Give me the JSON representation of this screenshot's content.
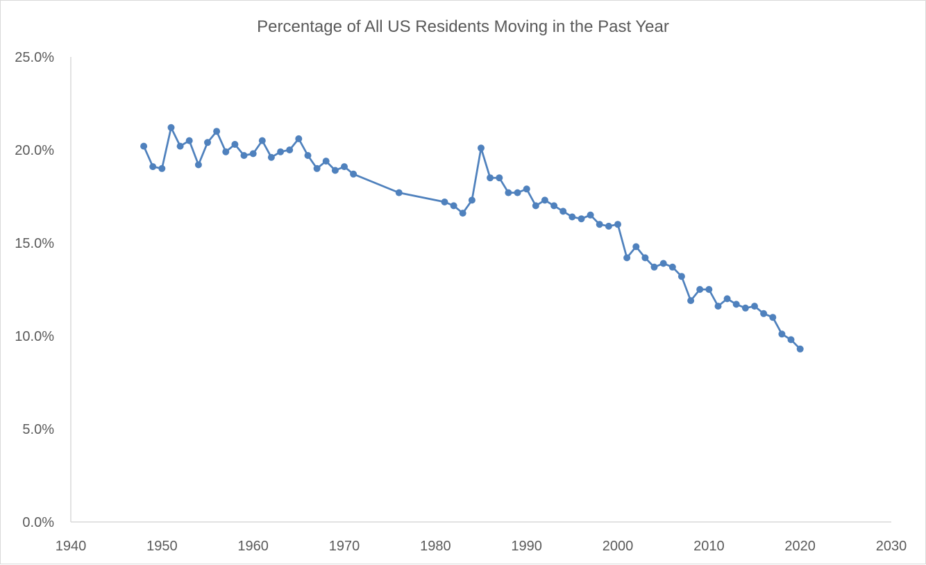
{
  "chart_data": {
    "type": "line",
    "title": "Percentage of All US Residents Moving in the Past Year",
    "xlabel": "",
    "ylabel": "",
    "xlim": [
      1940,
      2030
    ],
    "ylim": [
      0,
      25
    ],
    "x_ticks": [
      1940,
      1950,
      1960,
      1970,
      1980,
      1990,
      2000,
      2010,
      2020,
      2030
    ],
    "y_ticks": [
      0,
      5,
      10,
      15,
      20,
      25
    ],
    "x_tick_labels": [
      "1940",
      "1950",
      "1960",
      "1970",
      "1980",
      "1990",
      "2000",
      "2010",
      "2020",
      "2030"
    ],
    "y_tick_labels": [
      "0.0%",
      "5.0%",
      "10.0%",
      "15.0%",
      "20.0%",
      "25.0%"
    ],
    "grid": false,
    "legend": "none",
    "series": [
      {
        "color": "#4f81bd",
        "x": [
          1948,
          1949,
          1950,
          1951,
          1952,
          1953,
          1954,
          1955,
          1956,
          1957,
          1958,
          1959,
          1960,
          1961,
          1962,
          1963,
          1964,
          1965,
          1966,
          1967,
          1968,
          1969,
          1970,
          1971,
          1976,
          1981,
          1982,
          1983,
          1984,
          1985,
          1986,
          1987,
          1988,
          1989,
          1990,
          1991,
          1992,
          1993,
          1994,
          1995,
          1996,
          1997,
          1998,
          1999,
          2000,
          2001,
          2002,
          2003,
          2004,
          2005,
          2006,
          2007,
          2008,
          2009,
          2010,
          2011,
          2012,
          2013,
          2014,
          2015,
          2016,
          2017,
          2018,
          2019,
          2020
        ],
        "y": [
          20.2,
          19.1,
          19.0,
          21.2,
          20.2,
          20.5,
          19.2,
          20.4,
          21.0,
          19.9,
          20.3,
          19.7,
          19.8,
          20.5,
          19.6,
          19.9,
          20.0,
          20.6,
          19.7,
          19.0,
          19.4,
          18.9,
          19.1,
          18.7,
          17.7,
          17.2,
          17.0,
          16.6,
          17.3,
          20.1,
          18.5,
          18.5,
          17.7,
          17.7,
          17.9,
          17.0,
          17.3,
          17.0,
          16.7,
          16.4,
          16.3,
          16.5,
          16.0,
          15.9,
          16.0,
          14.2,
          14.8,
          14.2,
          13.7,
          13.9,
          13.7,
          13.2,
          11.9,
          12.5,
          12.5,
          11.6,
          12.0,
          11.7,
          11.5,
          11.6,
          11.2,
          11.0,
          10.1,
          9.8,
          9.3
        ]
      }
    ]
  },
  "colors": {
    "series": "#4f81bd",
    "axis": "#d9d9d9",
    "text": "#595959"
  }
}
